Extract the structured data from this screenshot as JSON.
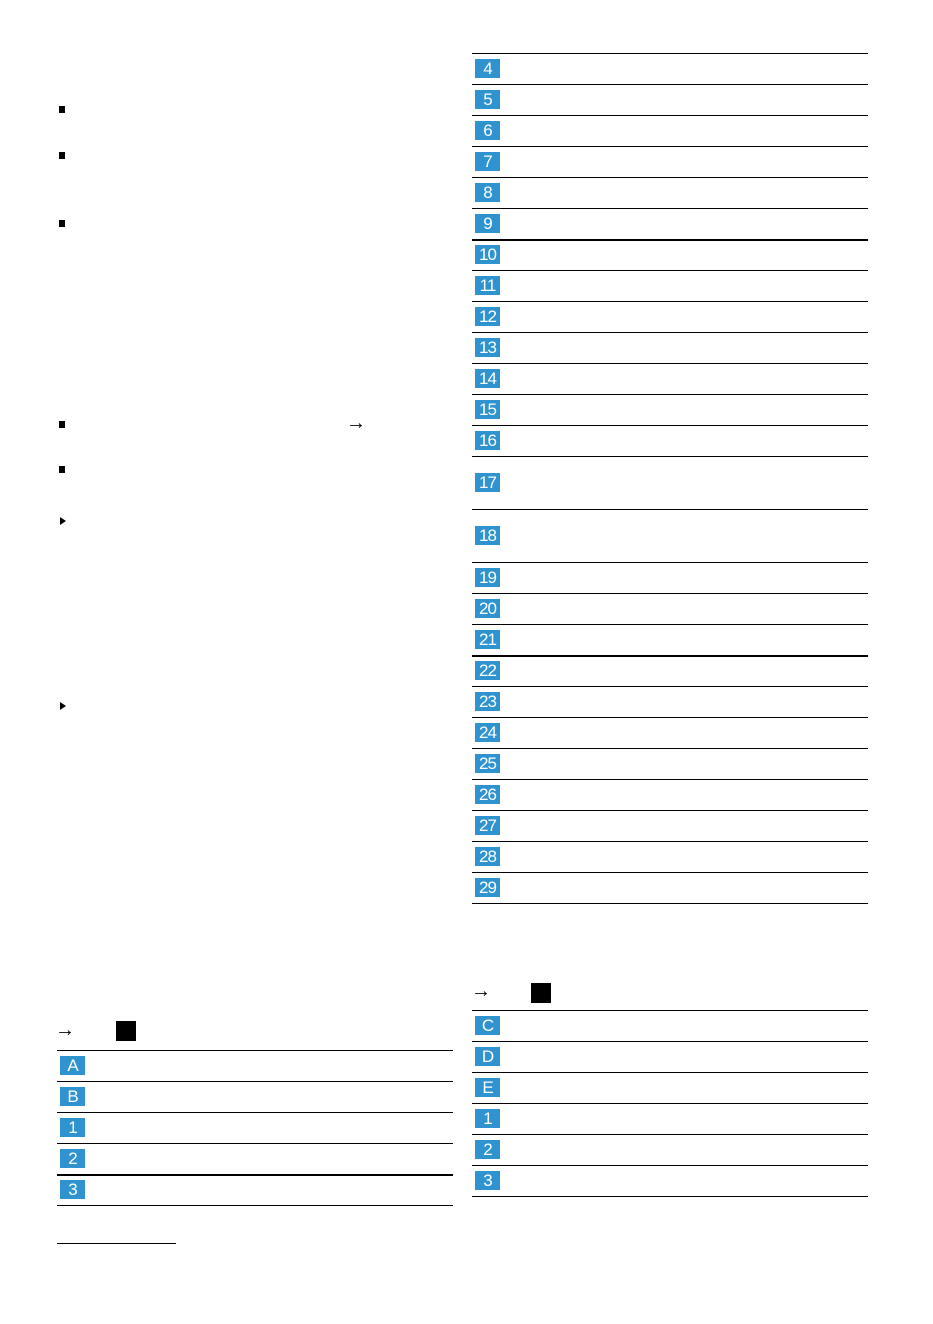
{
  "tables": [
    {
      "badges": [
        "4",
        "5",
        "6",
        "7",
        "8",
        "9",
        "10",
        "11",
        "12",
        "13",
        "14",
        "15",
        "16",
        "17",
        "18",
        "19",
        "20",
        "21",
        "22",
        "23",
        "24",
        "25",
        "26",
        "27",
        "28",
        "29"
      ]
    },
    {
      "badges": [
        "A",
        "B",
        "1",
        "2",
        "3"
      ]
    },
    {
      "badges": [
        "C",
        "D",
        "E",
        "1",
        "2",
        "3"
      ]
    }
  ]
}
